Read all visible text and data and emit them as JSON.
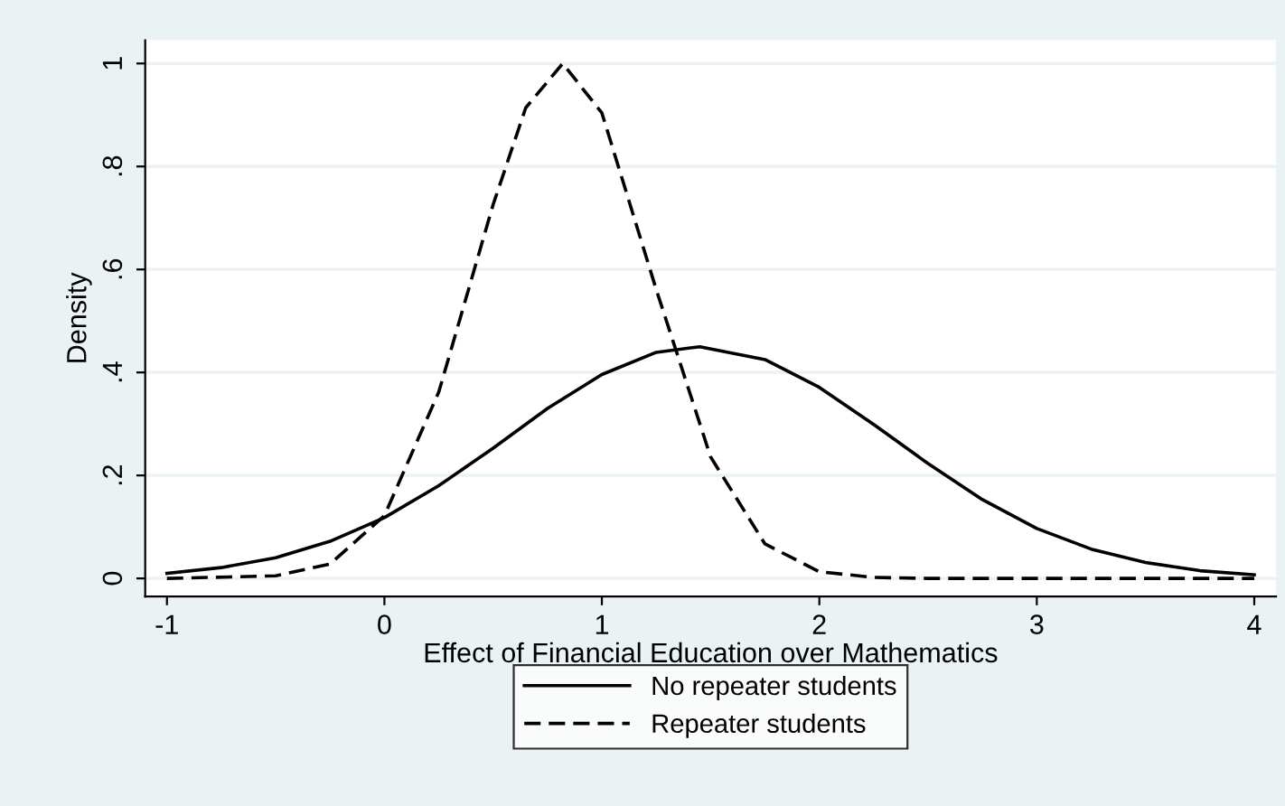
{
  "chart_data": {
    "type": "line",
    "xlabel": "Effect of Financial Education over Mathematics",
    "ylabel": "Density",
    "xlim": [
      -1.1,
      4.1
    ],
    "ylim": [
      -0.035,
      1.045
    ],
    "xticks": [
      {
        "value": -1,
        "label": "-1"
      },
      0,
      1,
      2,
      3,
      4
    ],
    "yticks": [
      0,
      {
        "value": 0.2,
        "label": ".2"
      },
      {
        "value": 0.4,
        "label": ".4"
      },
      {
        "value": 0.6,
        "label": ".6"
      },
      {
        "value": 0.8,
        "label": ".8"
      },
      1
    ],
    "grid": "y",
    "legend": "bottom",
    "series": [
      {
        "name": "No repeater students",
        "color": "#000000",
        "line_style": "solid",
        "x": [
          -1,
          -0.75,
          -0.5,
          -0.25,
          0,
          0.25,
          0.5,
          0.75,
          1,
          1.25,
          1.45,
          1.75,
          2,
          2.25,
          2.5,
          2.75,
          3,
          3.25,
          3.5,
          3.75,
          4
        ],
        "values": [
          0.01,
          0.021,
          0.04,
          0.072,
          0.118,
          0.18,
          0.253,
          0.33,
          0.396,
          0.439,
          0.45,
          0.425,
          0.371,
          0.299,
          0.223,
          0.153,
          0.097,
          0.057,
          0.031,
          0.015,
          0.007
        ]
      },
      {
        "name": "Repeater students",
        "color": "#000000",
        "line_style": "dashed",
        "x": [
          -1,
          -0.5,
          -0.25,
          0,
          0.25,
          0.5,
          0.65,
          0.82,
          1,
          1.25,
          1.5,
          1.75,
          2,
          2.25,
          2.5,
          3,
          3.5,
          4
        ],
        "values": [
          0,
          0.005,
          0.028,
          0.122,
          0.362,
          0.726,
          0.914,
          1,
          0.904,
          0.561,
          0.236,
          0.067,
          0.013,
          0.002,
          0,
          0,
          0,
          0
        ]
      }
    ]
  }
}
